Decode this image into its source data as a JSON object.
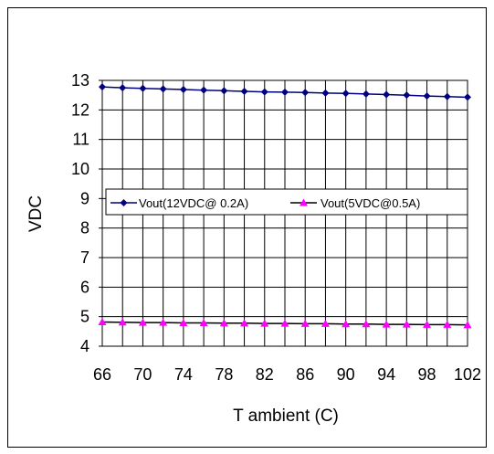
{
  "chart_data": {
    "type": "line",
    "title": "",
    "xlabel": "T ambient (C)",
    "ylabel": "VDC",
    "x": [
      66,
      68,
      70,
      72,
      74,
      76,
      78,
      80,
      82,
      84,
      86,
      88,
      90,
      92,
      94,
      96,
      98,
      100,
      102
    ],
    "x_tick_labels": [
      "66",
      "70",
      "74",
      "78",
      "82",
      "86",
      "90",
      "94",
      "98",
      "102"
    ],
    "y_tick_labels": [
      "4",
      "5",
      "6",
      "7",
      "8",
      "9",
      "10",
      "11",
      "12",
      "13"
    ],
    "xlim": [
      66,
      102
    ],
    "ylim": [
      4,
      13
    ],
    "grid": true,
    "legend_position": "center-left",
    "series": [
      {
        "name": "Vout(12VDC@ 0.2A)",
        "color": "#000080",
        "marker": "diamond",
        "values": [
          12.78,
          12.75,
          12.73,
          12.71,
          12.69,
          12.67,
          12.65,
          12.63,
          12.61,
          12.6,
          12.59,
          12.57,
          12.56,
          12.54,
          12.52,
          12.5,
          12.47,
          12.45,
          12.43
        ]
      },
      {
        "name": "Vout(5VDC@0.5A)",
        "color": "#ff00ff",
        "line_color": "#000000",
        "marker": "triangle",
        "values": [
          4.82,
          4.81,
          4.8,
          4.8,
          4.79,
          4.79,
          4.78,
          4.78,
          4.77,
          4.77,
          4.76,
          4.76,
          4.75,
          4.75,
          4.74,
          4.74,
          4.73,
          4.73,
          4.72
        ]
      }
    ]
  }
}
